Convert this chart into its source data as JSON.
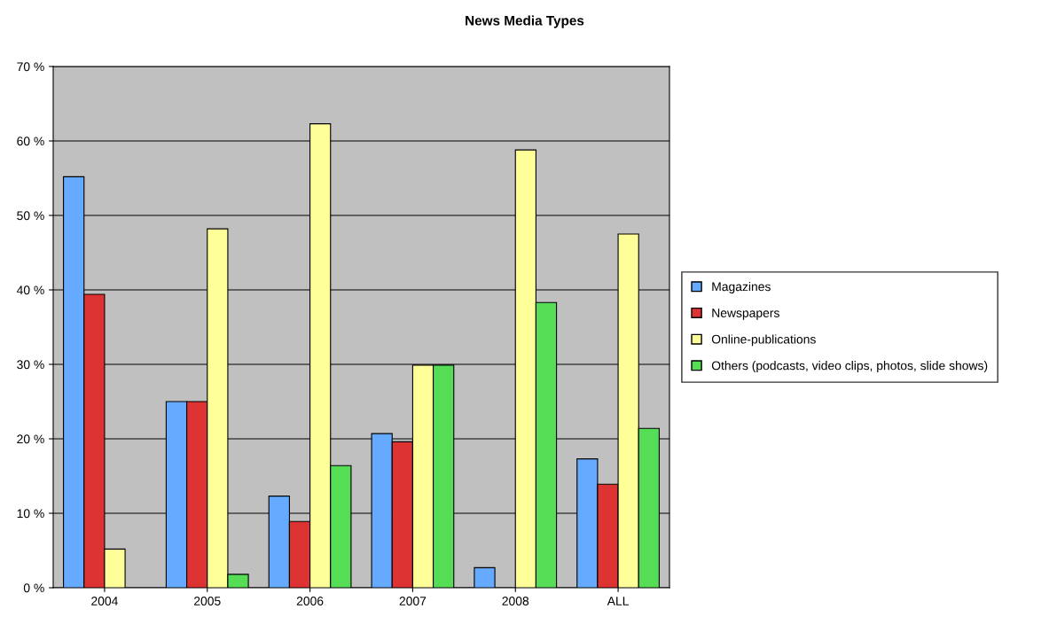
{
  "chart_data": {
    "type": "bar",
    "title": "News Media Types",
    "categories": [
      "2004",
      "2005",
      "2006",
      "2007",
      "2008",
      "ALL"
    ],
    "series": [
      {
        "name": "Magazines",
        "color": "#66aaff",
        "values": [
          55.2,
          25.0,
          12.3,
          20.7,
          2.7,
          17.3
        ]
      },
      {
        "name": "Newspapers",
        "color": "#dd3333",
        "values": [
          39.4,
          25.0,
          8.9,
          19.6,
          null,
          13.9
        ]
      },
      {
        "name": "Online-publications",
        "color": "#ffff99",
        "values": [
          5.2,
          48.2,
          62.3,
          29.9,
          58.8,
          47.5
        ]
      },
      {
        "name": "Others (podcasts, video clips, photos, slide shows)",
        "color": "#55dd55",
        "values": [
          null,
          1.8,
          16.4,
          29.9,
          38.3,
          21.4
        ]
      }
    ],
    "ylim": [
      0,
      70
    ],
    "yticks": [
      {
        "value": 0,
        "label": "0 %"
      },
      {
        "value": 10,
        "label": "10 %"
      },
      {
        "value": 20,
        "label": "20 %"
      },
      {
        "value": 30,
        "label": "30 %"
      },
      {
        "value": 40,
        "label": "40 %"
      },
      {
        "value": 50,
        "label": "50 %"
      },
      {
        "value": 60,
        "label": "60 %"
      },
      {
        "value": 70,
        "label": "70 %"
      }
    ],
    "grid": "y",
    "legend": "right"
  }
}
